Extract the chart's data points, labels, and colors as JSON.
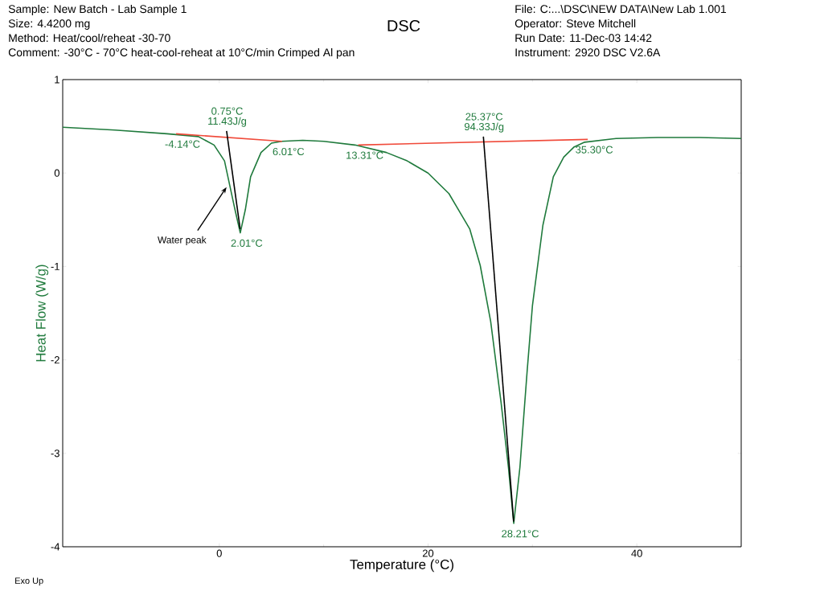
{
  "chart_data": {
    "type": "line",
    "title": "DSC",
    "xlabel": "Temperature (°C)",
    "ylabel": "Heat Flow (W/g)",
    "xlim": [
      -15,
      50
    ],
    "ylim": [
      -4,
      1
    ],
    "xticks": [
      0,
      20,
      40
    ],
    "yticks": [
      1,
      0,
      -1,
      -2,
      -3,
      -4
    ],
    "grid": false,
    "series": [
      {
        "color": "#1f7a3c",
        "x": [
          -15,
          -10,
          -5,
          -2,
          -0.5,
          0.5,
          1.0,
          1.5,
          2.01,
          2.5,
          3,
          4,
          5,
          6,
          8,
          10,
          13,
          16,
          18,
          20,
          22,
          24,
          25,
          26,
          27,
          27.7,
          28.21,
          28.8,
          29.5,
          30,
          31,
          32,
          33,
          34,
          35,
          38,
          42,
          46,
          50
        ],
        "values": [
          0.49,
          0.46,
          0.42,
          0.39,
          0.3,
          0.13,
          -0.13,
          -0.39,
          -0.64,
          -0.39,
          -0.04,
          0.22,
          0.32,
          0.34,
          0.35,
          0.34,
          0.3,
          0.22,
          0.13,
          0.0,
          -0.22,
          -0.6,
          -0.99,
          -1.59,
          -2.46,
          -3.15,
          -3.75,
          -3.15,
          -2.11,
          -1.42,
          -0.56,
          -0.04,
          0.17,
          0.28,
          0.33,
          0.37,
          0.38,
          0.38,
          0.37
        ]
      },
      {
        "color": "#f04a3a",
        "x": [
          -4.14,
          6.01
        ],
        "values": [
          0.42,
          0.34
        ]
      },
      {
        "color": "#f04a3a",
        "x": [
          13.31,
          35.3
        ],
        "values": [
          0.3,
          0.36
        ]
      },
      {
        "color": "#000000",
        "x": [
          0.7,
          2.0
        ],
        "values": [
          0.45,
          -0.6
        ]
      },
      {
        "color": "#000000",
        "x": [
          25.3,
          28.2
        ],
        "values": [
          0.39,
          -3.73
        ]
      }
    ],
    "annotations": [
      "Sample: New Batch - Lab Sample 1",
      "Size:   4.4200 mg",
      "Method: Heat/cool/reheat -30-70",
      "Comment: -30°C - 70°C heat-cool-reheat at 10°C/min Crimped Al pan",
      "File: C:...\\DSC\\NEW DATA\\New Lab 1.001",
      "Operator: Steve Mitchell",
      "Run Date: 11-Dec-03 14:42",
      "Instrument: 2920 DSC V2.6A",
      "Exo Up",
      {
        "text": "-4.14°C",
        "x": -4.14,
        "y": 0.42
      },
      {
        "text": "0.75°C",
        "x": 0.75,
        "y": 0.45
      },
      {
        "text": "11.43J/g",
        "x": 0.75,
        "y": 0.45
      },
      {
        "text": "6.01°C",
        "x": 6.01,
        "y": 0.34
      },
      {
        "text": "13.31°C",
        "x": 13.31,
        "y": 0.3
      },
      {
        "text": "2.01°C",
        "x": 2.01,
        "y": -0.64
      },
      {
        "text": "25.37°C",
        "x": 25.37,
        "y": 0.39
      },
      {
        "text": "94.33J/g",
        "x": 25.37,
        "y": 0.39
      },
      {
        "text": "35.30°C",
        "x": 35.3,
        "y": 0.36
      },
      {
        "text": "28.21°C",
        "x": 28.21,
        "y": -3.75
      },
      {
        "text": "Water peak",
        "x": 0.7,
        "y": -0.15
      }
    ]
  }
}
